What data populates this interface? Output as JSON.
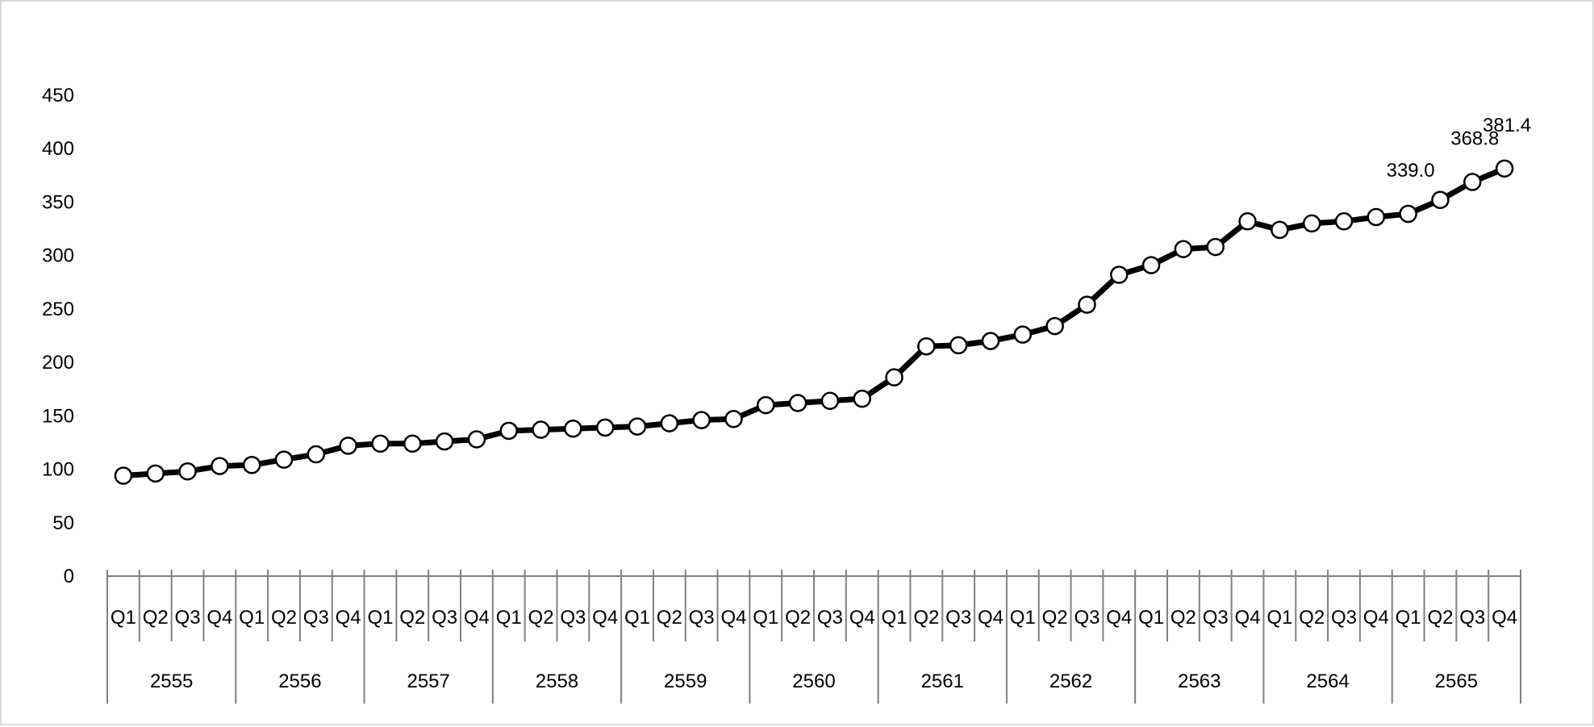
{
  "chart_data": {
    "type": "line",
    "title": "",
    "xlabel": "",
    "ylabel": "",
    "ylim": [
      0,
      450
    ],
    "y_ticks": [
      "0",
      "50",
      "100",
      "150",
      "200",
      "250",
      "300",
      "350",
      "400",
      "450"
    ],
    "grid": false,
    "legend": "none",
    "years": [
      "2555",
      "2556",
      "2557",
      "2558",
      "2559",
      "2560",
      "2561",
      "2562",
      "2563",
      "2564",
      "2565"
    ],
    "quarters": [
      "Q1",
      "Q2",
      "Q3",
      "Q4"
    ],
    "series": [
      {
        "values": [
          94,
          96,
          98,
          103,
          104,
          109,
          114,
          122,
          124,
          124,
          126,
          128,
          136,
          137,
          138,
          139,
          140,
          143,
          146,
          147,
          160,
          162,
          164,
          166,
          186,
          215,
          216,
          220,
          226,
          234,
          254,
          282,
          291,
          306,
          308,
          332,
          324,
          330,
          332,
          336,
          339.0,
          352,
          368.8,
          381.4
        ],
        "color": "#000000"
      }
    ],
    "annotations": [
      {
        "index": 40,
        "label": "339.0"
      },
      {
        "index": 42,
        "label": "368.8"
      },
      {
        "index": 43,
        "label": "381.4"
      }
    ]
  }
}
